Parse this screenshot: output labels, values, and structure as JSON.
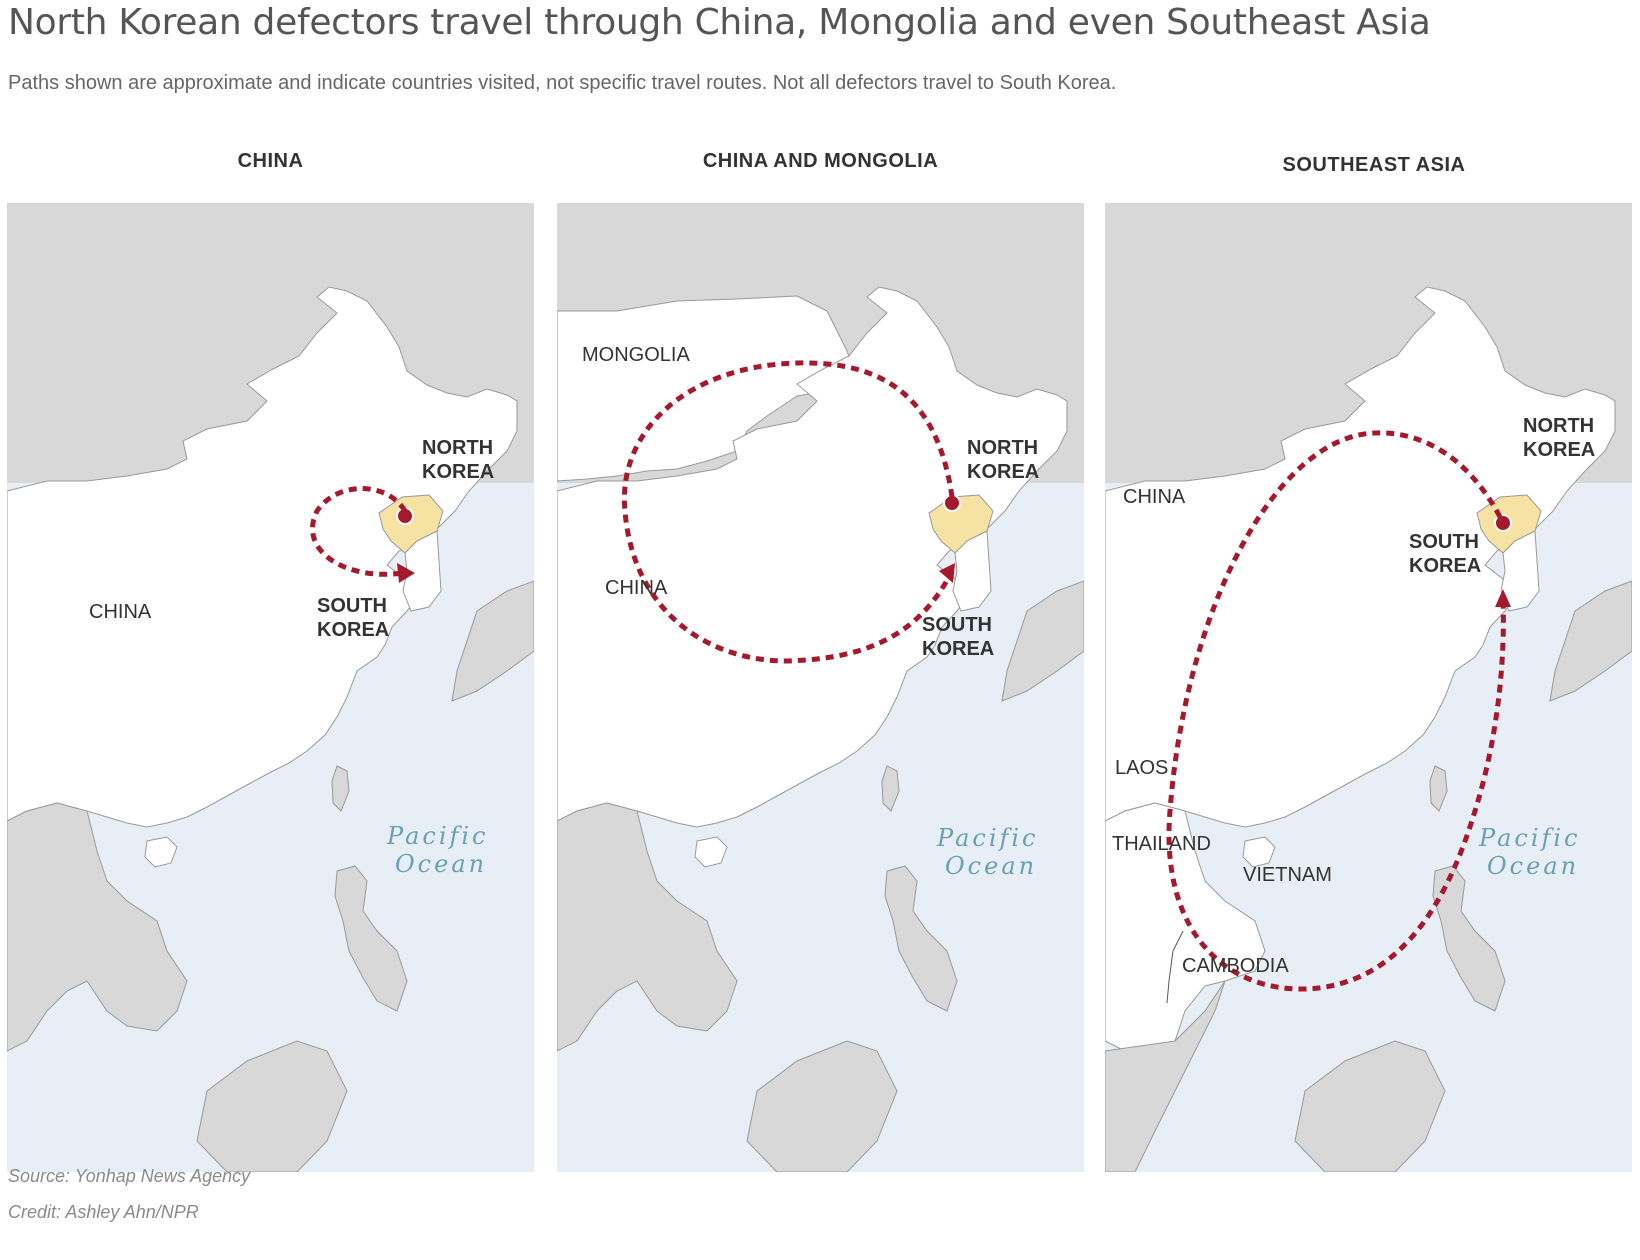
{
  "header": {
    "title": "North Korean defectors travel through China, Mongolia and even Southeast Asia",
    "subtitle": "Paths shown are approximate and indicate countries visited, not specific travel routes. Not all defectors travel to South Korea."
  },
  "colors": {
    "sea": "#e8eef6",
    "land_highlight": "#ffffff",
    "land_other": "#d8d8d8",
    "north_korea": "#f6e2a2",
    "route": "#a5192c",
    "ocean_label": "#6a9fb4"
  },
  "panels": [
    {
      "title": "CHINA",
      "labels": {
        "china": "CHINA",
        "nk1": "NORTH",
        "nk2": "KOREA",
        "sk1": "SOUTH",
        "sk2": "KOREA",
        "ocean1": "Pacific",
        "ocean2": "Ocean"
      }
    },
    {
      "title": "CHINA AND MONGOLIA",
      "labels": {
        "mongolia": "MONGOLIA",
        "china": "CHINA",
        "nk1": "NORTH",
        "nk2": "KOREA",
        "sk1": "SOUTH",
        "sk2": "KOREA",
        "ocean1": "Pacific",
        "ocean2": "Ocean"
      }
    },
    {
      "title": "SOUTHEAST ASIA",
      "labels": {
        "china": "CHINA",
        "laos": "LAOS",
        "thailand": "THAILAND",
        "vietnam": "VIETNAM",
        "cambodia": "CAMBODIA",
        "nk1": "NORTH",
        "nk2": "KOREA",
        "sk1": "SOUTH",
        "sk2": "KOREA",
        "ocean1": "Pacific",
        "ocean2": "Ocean"
      }
    }
  ],
  "footer": {
    "source": "Source: Yonhap News Agency",
    "credit": "Credit: Ashley Ahn/NPR"
  }
}
